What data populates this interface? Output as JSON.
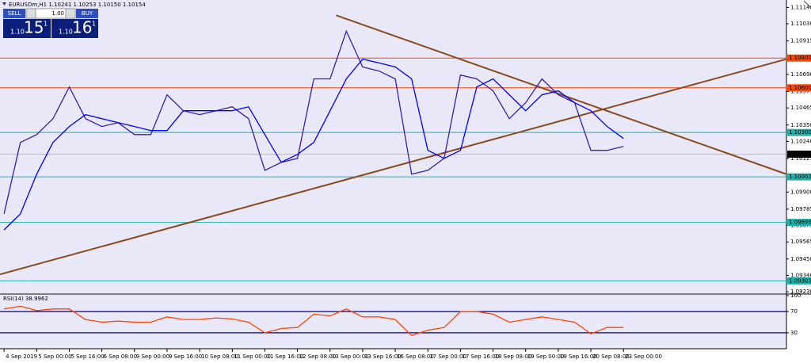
{
  "header": {
    "title": "EURUSDm,H1 1.10241 1.10253 1.10150 1.10154"
  },
  "trade_panel": {
    "sell": "SELL",
    "buy": "BUY",
    "lot": "1.00",
    "sell_price": {
      "big": "1.10",
      "pips": "15",
      "point": "1"
    },
    "buy_price": {
      "big": "1.10",
      "pips": "16",
      "point": "1"
    }
  },
  "chart_data": [
    {
      "type": "line",
      "x": [
        0,
        8,
        16,
        24,
        32,
        40,
        48,
        56,
        64,
        72,
        80,
        88,
        96,
        104,
        112,
        120,
        128,
        136,
        144,
        152,
        160,
        168,
        176,
        184,
        192,
        200,
        208,
        216,
        224,
        232,
        240,
        248,
        256,
        264,
        272,
        280,
        288,
        296,
        304
      ],
      "series": [
        {
          "color": "#3a1fa8",
          "values": [
            1.09753,
            1.10233,
            1.10286,
            1.10393,
            1.10606,
            1.10393,
            1.1034,
            1.10366,
            1.10286,
            1.10286,
            1.10553,
            1.10446,
            1.1042,
            1.10446,
            1.10473,
            1.10393,
            1.10046,
            1.10099,
            1.10126,
            1.1066,
            1.1066,
            1.1098,
            1.1074,
            1.10713,
            1.1066,
            1.1002,
            1.10046,
            1.10126,
            1.10686,
            1.1066,
            1.1058,
            1.10393,
            1.105,
            1.1066,
            1.10553,
            1.105,
            1.1018,
            1.1018,
            1.10206
          ]
        },
        {
          "color": "#0000ff",
          "values": [
            1.09646,
            1.09753,
            1.1002,
            1.10233,
            1.1034,
            1.1042,
            1.10393,
            1.10366,
            1.1034,
            1.10313,
            1.10313,
            1.10446,
            1.10446,
            1.10446,
            1.10446,
            1.10473,
            1.10286,
            1.101,
            1.10153,
            1.10233,
            1.10446,
            1.1066,
            1.10793,
            1.10767,
            1.1074,
            1.1066,
            1.1018,
            1.10126,
            1.1018,
            1.10606,
            1.1066,
            1.10553,
            1.10446,
            1.10553,
            1.1058,
            1.105,
            1.10446,
            1.1034,
            1.1026
          ]
        }
      ],
      "xlim": [
        -2,
        384
      ],
      "ylim": [
        1.0922,
        1.1119
      ],
      "yticks": [
        {
          "value": 1.1114,
          "label": "1.11140"
        },
        {
          "value": 1.1103,
          "label": "1.11030"
        },
        {
          "value": 1.10915,
          "label": "1.10915"
        },
        {
          "value": 1.1069,
          "label": "1.10690"
        },
        {
          "value": 1.10575,
          "label": "1.10575"
        },
        {
          "value": 1.10465,
          "label": "1.10465"
        },
        {
          "value": 1.1035,
          "label": "1.10350"
        },
        {
          "value": 1.1024,
          "label": "1.10240"
        },
        {
          "value": 1.10125,
          "label": "1.10125"
        },
        {
          "value": 1.099,
          "label": "1.09900"
        },
        {
          "value": 1.09785,
          "label": "1.09785"
        },
        {
          "value": 1.09675,
          "label": "1.09675"
        },
        {
          "value": 1.09565,
          "label": "1.09565"
        },
        {
          "value": 1.0945,
          "label": "1.09450"
        },
        {
          "value": 1.0934,
          "label": "1.09340"
        },
        {
          "value": 1.0923,
          "label": "1.09230"
        }
      ],
      "xticks": [
        {
          "value": 0,
          "label": "4 Sep 2019"
        },
        {
          "value": 16,
          "label": "5 Sep 00:00"
        },
        {
          "value": 32,
          "label": "5 Sep 16:00"
        },
        {
          "value": 48,
          "label": "6 Sep 08:00"
        },
        {
          "value": 64,
          "label": "9 Sep 00:00"
        },
        {
          "value": 80,
          "label": "9 Sep 16:00"
        },
        {
          "value": 96,
          "label": "10 Sep 08:00"
        },
        {
          "value": 112,
          "label": "11 Sep 00:00"
        },
        {
          "value": 128,
          "label": "11 Sep 16:00"
        },
        {
          "value": 144,
          "label": "12 Sep 08:00"
        },
        {
          "value": 160,
          "label": "13 Sep 00:00"
        },
        {
          "value": 176,
          "label": "13 Sep 16:00"
        },
        {
          "value": 192,
          "label": "16 Sep 08:00"
        },
        {
          "value": 208,
          "label": "17 Sep 00:00"
        },
        {
          "value": 224,
          "label": "17 Sep 16:00"
        },
        {
          "value": 240,
          "label": "18 Sep 08:00"
        },
        {
          "value": 256,
          "label": "19 Sep 00:00"
        },
        {
          "value": 272,
          "label": "19 Sep 16:00"
        },
        {
          "value": 288,
          "label": "20 Sep 08:00"
        },
        {
          "value": 304,
          "label": "23 Sep 00:00"
        }
      ],
      "levels": [
        {
          "value": 1.108,
          "label": "1.10800",
          "color": "#ff4500"
        },
        {
          "value": 1.106,
          "label": "1.10600",
          "color": "#ff4500"
        },
        {
          "value": 1.103,
          "label": "1.10300",
          "color": "#20b2aa"
        },
        {
          "value": 1.10002,
          "label": "1.10002",
          "color": "#20b2aa"
        },
        {
          "value": 1.09696,
          "label": "1.09696",
          "color": "#20b2aa"
        },
        {
          "value": 1.09303,
          "label": "1.09303",
          "color": "#20b2aa"
        }
      ],
      "current": {
        "value": 1.10154,
        "label": "1.10154",
        "color": "#000000"
      },
      "trendlines": [
        {
          "color": "#8b4a1e",
          "points": [
            [
              -2,
              1.09347
            ],
            [
              384,
              1.10793
            ]
          ]
        },
        {
          "color": "#8b4a1e",
          "points": [
            [
              163,
              1.11087
            ],
            [
              384,
              1.1002
            ]
          ]
        }
      ]
    },
    {
      "type": "line",
      "title": "RSI(14) 38.9962",
      "x": [
        0,
        8,
        16,
        24,
        32,
        40,
        48,
        56,
        64,
        72,
        80,
        88,
        96,
        104,
        112,
        120,
        128,
        136,
        144,
        152,
        160,
        168,
        176,
        184,
        192,
        200,
        208,
        216,
        224,
        232,
        240,
        248,
        256,
        264,
        272,
        280,
        288,
        296,
        304
      ],
      "series": [
        {
          "color": "#ff4500",
          "values": [
            75,
            80,
            72,
            75,
            75,
            55,
            50,
            52,
            50,
            50,
            60,
            55,
            55,
            58,
            56,
            50,
            30,
            38,
            40,
            65,
            62,
            75,
            60,
            60,
            55,
            25,
            35,
            40,
            70,
            70,
            65,
            50,
            55,
            60,
            55,
            50,
            28,
            40,
            40
          ]
        }
      ],
      "xlim": [
        -2,
        384
      ],
      "ylim": [
        0,
        100
      ],
      "yticks": [
        100,
        70,
        30
      ],
      "levels": [
        {
          "value": 70,
          "color": "#00008b"
        },
        {
          "value": 30,
          "color": "#00008b"
        }
      ]
    }
  ]
}
